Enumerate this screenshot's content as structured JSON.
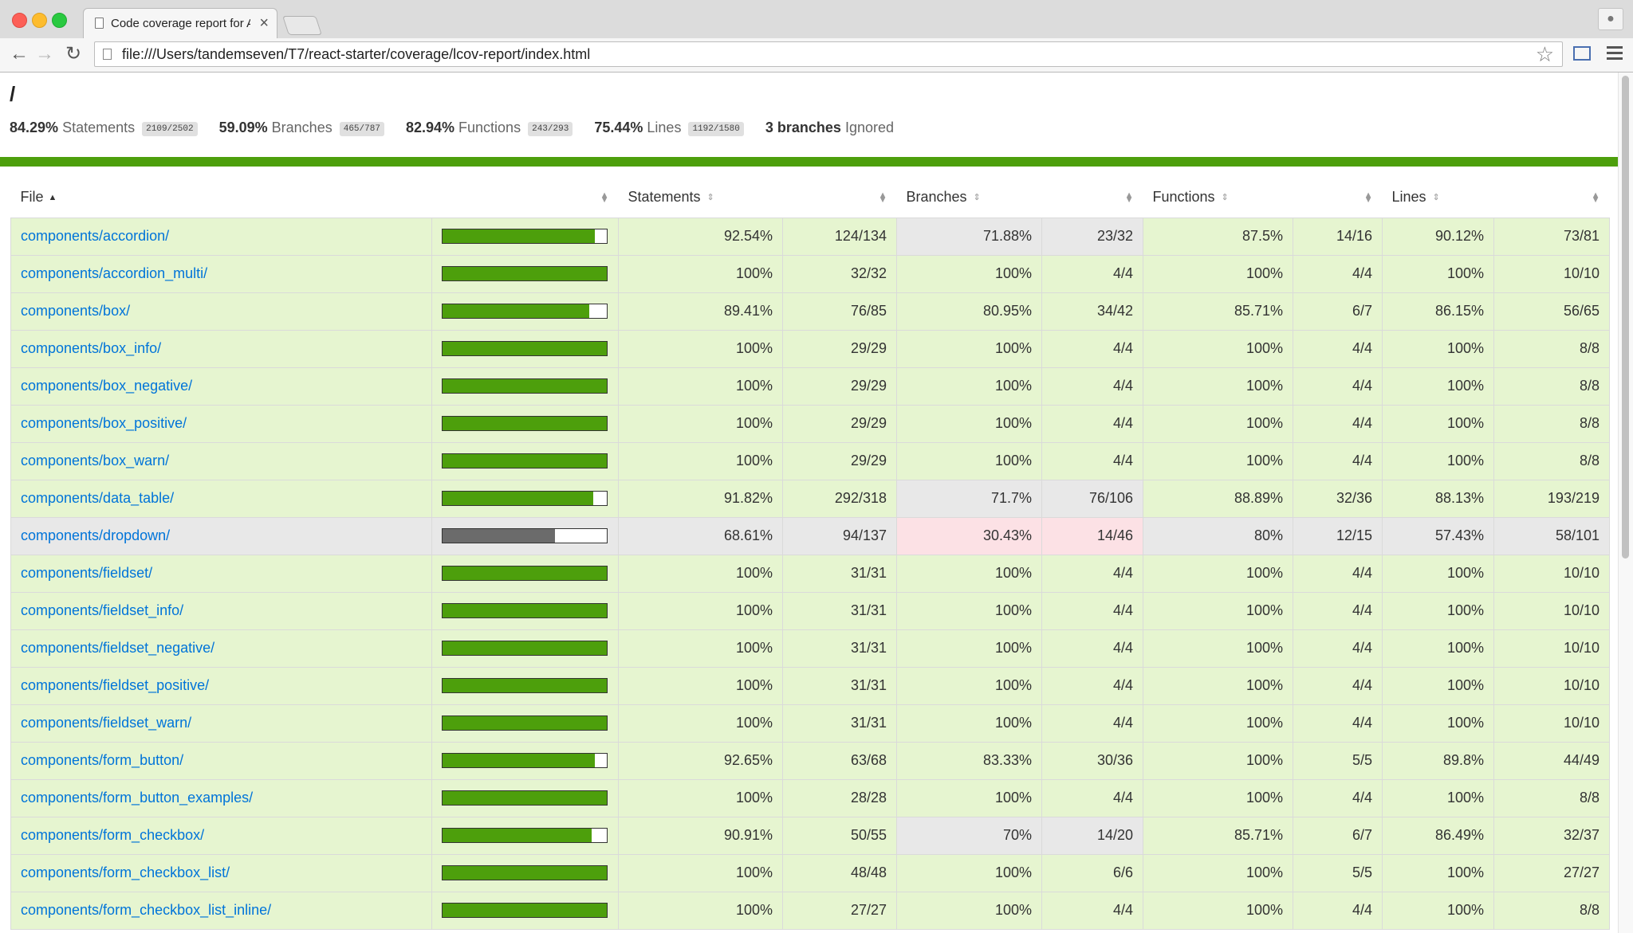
{
  "browser": {
    "tab_title": "Code coverage report for All files",
    "tab_close": "×",
    "url": "file:///Users/tandemseven/T7/react-starter/coverage/lcov-report/index.html"
  },
  "page": {
    "heading": "/",
    "summary": {
      "statements": {
        "pct": "84.29%",
        "label": "Statements",
        "frac": "2109/2502"
      },
      "branches": {
        "pct": "59.09%",
        "label": "Branches",
        "frac": "465/787"
      },
      "functions": {
        "pct": "82.94%",
        "label": "Functions",
        "frac": "243/293"
      },
      "lines": {
        "pct": "75.44%",
        "label": "Lines",
        "frac": "1192/1580"
      },
      "ignored": {
        "count": "3 branches",
        "label": "Ignored"
      }
    },
    "colors": {
      "high_bar": "#4d9f0c",
      "low_bar": "#6b6b6b",
      "high_row": "#e6f5d0",
      "medium_row": "#e8e8e8",
      "low_cell": "#fce1e5",
      "link": "#0074d9"
    },
    "table": {
      "headers": {
        "file": "File",
        "statements": "Statements",
        "branches": "Branches",
        "functions": "Functions",
        "lines": "Lines"
      },
      "rows": [
        {
          "file": "components/accordion/",
          "bar": 0.9254,
          "level": "high",
          "stmt_pct": "92.54%",
          "stmt_frac": "124/134",
          "br_pct": "71.88%",
          "br_frac": "23/32",
          "br_level": "medium",
          "fn_pct": "87.5%",
          "fn_frac": "14/16",
          "ln_pct": "90.12%",
          "ln_frac": "73/81"
        },
        {
          "file": "components/accordion_multi/",
          "bar": 1,
          "level": "high",
          "stmt_pct": "100%",
          "stmt_frac": "32/32",
          "br_pct": "100%",
          "br_frac": "4/4",
          "br_level": "high",
          "fn_pct": "100%",
          "fn_frac": "4/4",
          "ln_pct": "100%",
          "ln_frac": "10/10"
        },
        {
          "file": "components/box/",
          "bar": 0.8941,
          "level": "high",
          "stmt_pct": "89.41%",
          "stmt_frac": "76/85",
          "br_pct": "80.95%",
          "br_frac": "34/42",
          "br_level": "high",
          "fn_pct": "85.71%",
          "fn_frac": "6/7",
          "ln_pct": "86.15%",
          "ln_frac": "56/65"
        },
        {
          "file": "components/box_info/",
          "bar": 1,
          "level": "high",
          "stmt_pct": "100%",
          "stmt_frac": "29/29",
          "br_pct": "100%",
          "br_frac": "4/4",
          "br_level": "high",
          "fn_pct": "100%",
          "fn_frac": "4/4",
          "ln_pct": "100%",
          "ln_frac": "8/8"
        },
        {
          "file": "components/box_negative/",
          "bar": 1,
          "level": "high",
          "stmt_pct": "100%",
          "stmt_frac": "29/29",
          "br_pct": "100%",
          "br_frac": "4/4",
          "br_level": "high",
          "fn_pct": "100%",
          "fn_frac": "4/4",
          "ln_pct": "100%",
          "ln_frac": "8/8"
        },
        {
          "file": "components/box_positive/",
          "bar": 1,
          "level": "high",
          "stmt_pct": "100%",
          "stmt_frac": "29/29",
          "br_pct": "100%",
          "br_frac": "4/4",
          "br_level": "high",
          "fn_pct": "100%",
          "fn_frac": "4/4",
          "ln_pct": "100%",
          "ln_frac": "8/8"
        },
        {
          "file": "components/box_warn/",
          "bar": 1,
          "level": "high",
          "stmt_pct": "100%",
          "stmt_frac": "29/29",
          "br_pct": "100%",
          "br_frac": "4/4",
          "br_level": "high",
          "fn_pct": "100%",
          "fn_frac": "4/4",
          "ln_pct": "100%",
          "ln_frac": "8/8"
        },
        {
          "file": "components/data_table/",
          "bar": 0.9182,
          "level": "high",
          "stmt_pct": "91.82%",
          "stmt_frac": "292/318",
          "br_pct": "71.7%",
          "br_frac": "76/106",
          "br_level": "medium",
          "fn_pct": "88.89%",
          "fn_frac": "32/36",
          "ln_pct": "88.13%",
          "ln_frac": "193/219"
        },
        {
          "file": "components/dropdown/",
          "bar": 0.6861,
          "level": "medium",
          "stmt_pct": "68.61%",
          "stmt_frac": "94/137",
          "br_pct": "30.43%",
          "br_frac": "14/46",
          "br_level": "low",
          "fn_pct": "80%",
          "fn_frac": "12/15",
          "ln_pct": "57.43%",
          "ln_frac": "58/101"
        },
        {
          "file": "components/fieldset/",
          "bar": 1,
          "level": "high",
          "stmt_pct": "100%",
          "stmt_frac": "31/31",
          "br_pct": "100%",
          "br_frac": "4/4",
          "br_level": "high",
          "fn_pct": "100%",
          "fn_frac": "4/4",
          "ln_pct": "100%",
          "ln_frac": "10/10"
        },
        {
          "file": "components/fieldset_info/",
          "bar": 1,
          "level": "high",
          "stmt_pct": "100%",
          "stmt_frac": "31/31",
          "br_pct": "100%",
          "br_frac": "4/4",
          "br_level": "high",
          "fn_pct": "100%",
          "fn_frac": "4/4",
          "ln_pct": "100%",
          "ln_frac": "10/10"
        },
        {
          "file": "components/fieldset_negative/",
          "bar": 1,
          "level": "high",
          "stmt_pct": "100%",
          "stmt_frac": "31/31",
          "br_pct": "100%",
          "br_frac": "4/4",
          "br_level": "high",
          "fn_pct": "100%",
          "fn_frac": "4/4",
          "ln_pct": "100%",
          "ln_frac": "10/10"
        },
        {
          "file": "components/fieldset_positive/",
          "bar": 1,
          "level": "high",
          "stmt_pct": "100%",
          "stmt_frac": "31/31",
          "br_pct": "100%",
          "br_frac": "4/4",
          "br_level": "high",
          "fn_pct": "100%",
          "fn_frac": "4/4",
          "ln_pct": "100%",
          "ln_frac": "10/10"
        },
        {
          "file": "components/fieldset_warn/",
          "bar": 1,
          "level": "high",
          "stmt_pct": "100%",
          "stmt_frac": "31/31",
          "br_pct": "100%",
          "br_frac": "4/4",
          "br_level": "high",
          "fn_pct": "100%",
          "fn_frac": "4/4",
          "ln_pct": "100%",
          "ln_frac": "10/10"
        },
        {
          "file": "components/form_button/",
          "bar": 0.9265,
          "level": "high",
          "stmt_pct": "92.65%",
          "stmt_frac": "63/68",
          "br_pct": "83.33%",
          "br_frac": "30/36",
          "br_level": "high",
          "fn_pct": "100%",
          "fn_frac": "5/5",
          "ln_pct": "89.8%",
          "ln_frac": "44/49"
        },
        {
          "file": "components/form_button_examples/",
          "bar": 1,
          "level": "high",
          "stmt_pct": "100%",
          "stmt_frac": "28/28",
          "br_pct": "100%",
          "br_frac": "4/4",
          "br_level": "high",
          "fn_pct": "100%",
          "fn_frac": "4/4",
          "ln_pct": "100%",
          "ln_frac": "8/8"
        },
        {
          "file": "components/form_checkbox/",
          "bar": 0.9091,
          "level": "high",
          "stmt_pct": "90.91%",
          "stmt_frac": "50/55",
          "br_pct": "70%",
          "br_frac": "14/20",
          "br_level": "medium",
          "fn_pct": "85.71%",
          "fn_frac": "6/7",
          "ln_pct": "86.49%",
          "ln_frac": "32/37"
        },
        {
          "file": "components/form_checkbox_list/",
          "bar": 1,
          "level": "high",
          "stmt_pct": "100%",
          "stmt_frac": "48/48",
          "br_pct": "100%",
          "br_frac": "6/6",
          "br_level": "high",
          "fn_pct": "100%",
          "fn_frac": "5/5",
          "ln_pct": "100%",
          "ln_frac": "27/27"
        },
        {
          "file": "components/form_checkbox_list_inline/",
          "bar": 1,
          "level": "high",
          "stmt_pct": "100%",
          "stmt_frac": "27/27",
          "br_pct": "100%",
          "br_frac": "4/4",
          "br_level": "high",
          "fn_pct": "100%",
          "fn_frac": "4/4",
          "ln_pct": "100%",
          "ln_frac": "8/8"
        }
      ]
    }
  }
}
